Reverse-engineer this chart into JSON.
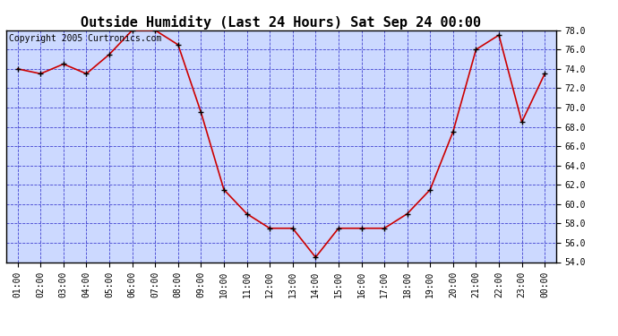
{
  "title": "Outside Humidity (Last 24 Hours) Sat Sep 24 00:00",
  "copyright": "Copyright 2005 Curtronics.com",
  "x_labels": [
    "01:00",
    "02:00",
    "03:00",
    "04:00",
    "05:00",
    "06:00",
    "07:00",
    "08:00",
    "09:00",
    "10:00",
    "11:00",
    "12:00",
    "13:00",
    "14:00",
    "15:00",
    "16:00",
    "17:00",
    "18:00",
    "19:00",
    "20:00",
    "21:00",
    "22:00",
    "23:00",
    "00:00"
  ],
  "y_values": [
    74.0,
    73.5,
    74.5,
    73.5,
    75.5,
    78.0,
    78.0,
    76.5,
    69.5,
    61.5,
    59.0,
    57.5,
    57.5,
    54.5,
    57.5,
    57.5,
    57.5,
    59.0,
    61.5,
    67.5,
    76.0,
    77.5,
    68.5,
    73.5
  ],
  "line_color": "#cc0000",
  "marker_color": "#000000",
  "bg_color": "#ccd9ff",
  "grid_color": "#3333cc",
  "title_fontsize": 11,
  "copyright_fontsize": 7,
  "tick_fontsize": 7,
  "ylim": [
    54.0,
    78.0
  ],
  "yticks": [
    54.0,
    56.0,
    58.0,
    60.0,
    62.0,
    64.0,
    66.0,
    68.0,
    70.0,
    72.0,
    74.0,
    76.0,
    78.0
  ]
}
